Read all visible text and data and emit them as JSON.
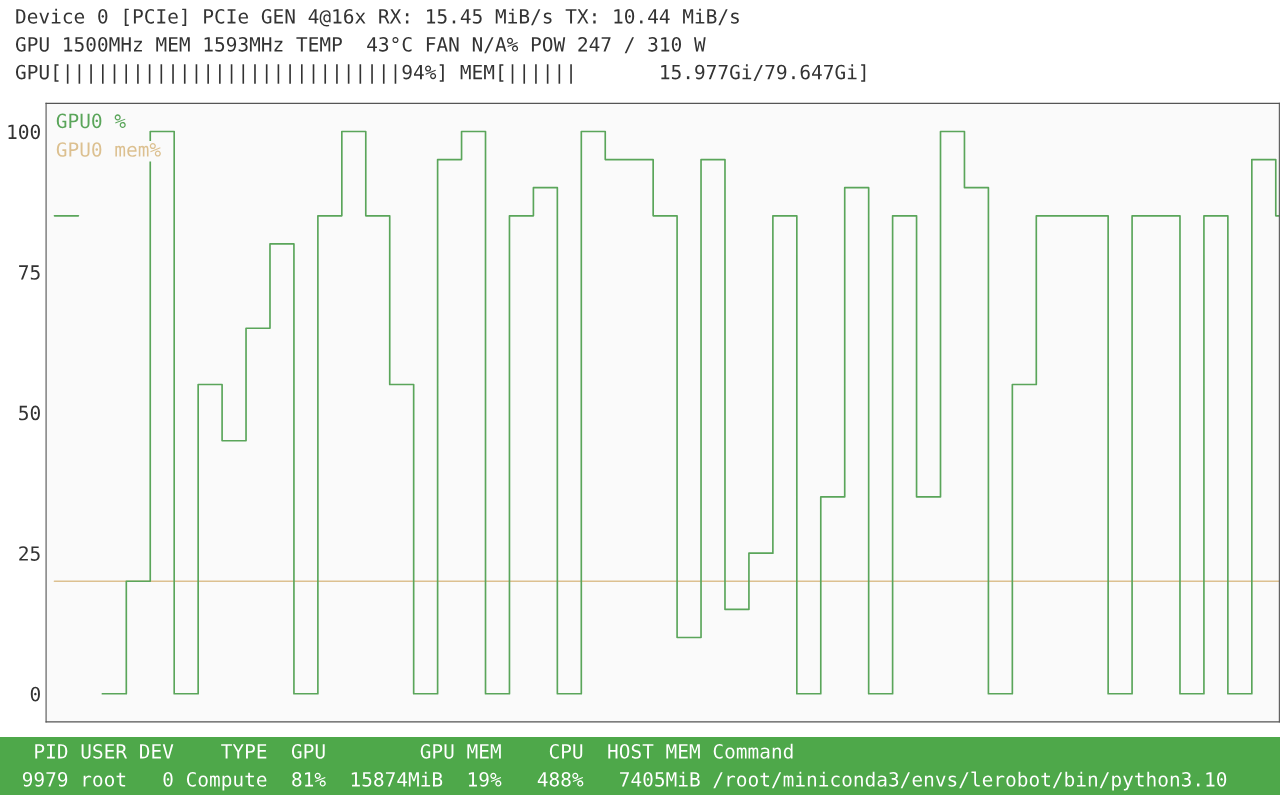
{
  "chart_data": {
    "type": "step",
    "categories": [
      null,
      null,
      null,
      null,
      null,
      null,
      null,
      null,
      null,
      null,
      null,
      null,
      null,
      null,
      null,
      null,
      null,
      null,
      null,
      null,
      null,
      null,
      null,
      null,
      null,
      null,
      null,
      null,
      null,
      null,
      null,
      null,
      null,
      null,
      null,
      null,
      null,
      null,
      null,
      null,
      null,
      null,
      null,
      null,
      null,
      null,
      null,
      null,
      null,
      null,
      null,
      null
    ],
    "series": [
      {
        "name": "GPU0 %",
        "color": "#5aa55a",
        "values": [
          85,
          null,
          0,
          20,
          100,
          0,
          55,
          45,
          65,
          80,
          0,
          85,
          100,
          85,
          55,
          0,
          95,
          100,
          0,
          85,
          90,
          0,
          100,
          95,
          95,
          85,
          10,
          95,
          15,
          25,
          85,
          0,
          35,
          90,
          0,
          85,
          35,
          100,
          90,
          0,
          55,
          85,
          85,
          85,
          0,
          85,
          85,
          0,
          85,
          0,
          95,
          85
        ]
      },
      {
        "name": "GPU0 mem%",
        "color": "#dcc090",
        "values": [
          20,
          20,
          20,
          20,
          20,
          20,
          20,
          20,
          20,
          20,
          20,
          20,
          20,
          20,
          20,
          20,
          20,
          20,
          20,
          20,
          20,
          20,
          20,
          20,
          20,
          20,
          20,
          20,
          20,
          20,
          20,
          20,
          20,
          20,
          20,
          20,
          20,
          20,
          20,
          20,
          20,
          20,
          20,
          20,
          20,
          20,
          20,
          20,
          20,
          20,
          20,
          20
        ]
      }
    ],
    "ylim": [
      -5,
      105
    ],
    "yticks": [
      0,
      25,
      50,
      75,
      100
    ],
    "grid": false,
    "legend": "top left",
    "annotations": [
      "Device 0 [PCIe] PCIe GEN 4@16x RX: 15.45 MiB/s TX: 10.44 MiB/s",
      "GPU 1500MHz MEM 1593MHz TEMP  43°C FAN N/A% POW 247 / 310 W",
      "GPU[|||||||||||||||||||||||||||||94%] MEM[||||||       15.977Gi/79.647Gi]",
      "  PID USER DEV    TYPE  GPU        GPU MEM    CPU  HOST MEM Command",
      " 9979 root   0 Compute  81%  15874MiB  19%   488%   7405MiB /root/miniconda3/envs/lerobot/bin/python3.10"
    ]
  }
}
